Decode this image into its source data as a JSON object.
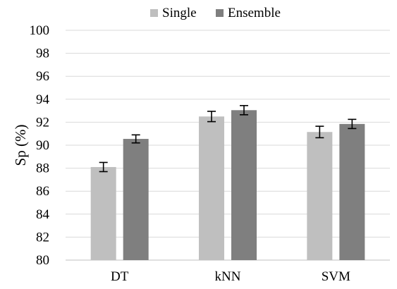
{
  "chart_data": {
    "type": "bar",
    "title": "",
    "xlabel": "",
    "ylabel": "Sp (%)",
    "ylim": [
      80,
      100
    ],
    "ytick_step": 2,
    "yticks": [
      80,
      82,
      84,
      86,
      88,
      90,
      92,
      94,
      96,
      98,
      100
    ],
    "grid": true,
    "legend_position": "top-center",
    "categories": [
      "DT",
      "kNN",
      "SVM"
    ],
    "series": [
      {
        "name": "Single",
        "color": "#bfbfbf",
        "values": [
          88.1,
          92.5,
          91.15
        ],
        "errors": [
          0.4,
          0.45,
          0.5
        ]
      },
      {
        "name": "Ensemble",
        "color": "#7f7f7f",
        "values": [
          90.55,
          93.05,
          91.85
        ],
        "errors": [
          0.35,
          0.4,
          0.4
        ]
      }
    ]
  }
}
